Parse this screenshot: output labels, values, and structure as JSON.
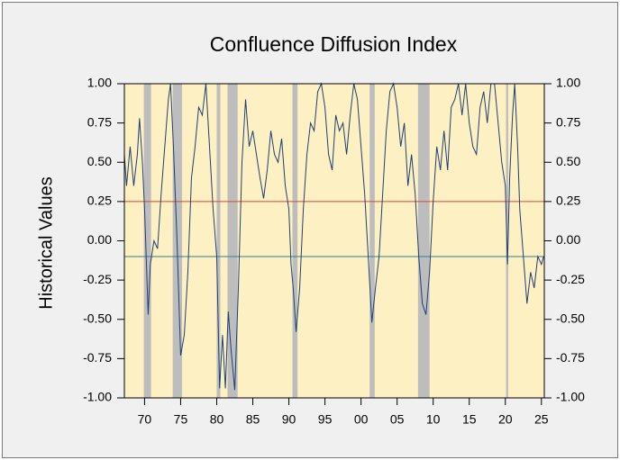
{
  "chart_data": {
    "type": "line",
    "title": "Confluence Diffusion Index",
    "y_label": "Historical Values",
    "xlim": [
      1967.2,
      2025.4
    ],
    "ylim": [
      -1,
      1
    ],
    "y2lim": [
      -1,
      1
    ],
    "xticks": [
      {
        "value": 1970,
        "label": "70"
      },
      {
        "value": 1975,
        "label": "75"
      },
      {
        "value": 1980,
        "label": "80"
      },
      {
        "value": 1985,
        "label": "85"
      },
      {
        "value": 1990,
        "label": "90"
      },
      {
        "value": 1995,
        "label": "95"
      },
      {
        "value": 2000,
        "label": "00"
      },
      {
        "value": 2005,
        "label": "05"
      },
      {
        "value": 2010,
        "label": "10"
      },
      {
        "value": 2015,
        "label": "15"
      },
      {
        "value": 2020,
        "label": "20"
      },
      {
        "value": 2025,
        "label": "25"
      }
    ],
    "yticks": [
      {
        "value": 1,
        "label": "1.00"
      },
      {
        "value": 0.75,
        "label": "0.75"
      },
      {
        "value": 0.5,
        "label": "0.50"
      },
      {
        "value": 0.25,
        "label": "0.25"
      },
      {
        "value": 0,
        "label": "0.00"
      },
      {
        "value": -0.25,
        "label": "-0.25"
      },
      {
        "value": -0.5,
        "label": "-0.50"
      },
      {
        "value": -0.75,
        "label": "-0.75"
      },
      {
        "value": -1,
        "label": "-1.00"
      }
    ],
    "y2ticks": [
      {
        "value": 1,
        "label": "1.00"
      },
      {
        "value": 0.75,
        "label": "0.75"
      },
      {
        "value": 0.5,
        "label": "0.50"
      },
      {
        "value": 0.25,
        "label": "0.25"
      },
      {
        "value": 0,
        "label": "0.00"
      },
      {
        "value": -0.25,
        "label": "-0.25"
      },
      {
        "value": -0.5,
        "label": "-0.50"
      },
      {
        "value": -0.75,
        "label": "-0.75"
      },
      {
        "value": -1,
        "label": "-1.00"
      }
    ],
    "plot_background": "#fdf1c3",
    "shade_color": "#bdbdbd",
    "shaded_periods": [
      [
        1969.9,
        1970.9
      ],
      [
        1973.9,
        1975.2
      ],
      [
        1980.0,
        1980.5
      ],
      [
        1981.5,
        1982.9
      ],
      [
        1990.5,
        1991.2
      ],
      [
        2001.2,
        2001.9
      ],
      [
        2007.9,
        2009.5
      ],
      [
        2020.1,
        2020.4
      ]
    ],
    "reference_lines": [
      {
        "value": 0.25,
        "color": "#d9463a"
      },
      {
        "value": -0.1,
        "color": "#2f7f8f"
      }
    ],
    "x": [
      1967.2,
      1967.5,
      1968,
      1968.5,
      1969,
      1969.3,
      1969.7,
      1970,
      1970.3,
      1970.5,
      1970.8,
      1971.3,
      1971.8,
      1972.3,
      1972.8,
      1973.3,
      1973.6,
      1974,
      1974.5,
      1975,
      1975.5,
      1976,
      1976.5,
      1977,
      1977.5,
      1978,
      1978.5,
      1979,
      1979.5,
      1980,
      1980.4,
      1980.8,
      1981.2,
      1981.6,
      1982,
      1982.5,
      1983,
      1983.5,
      1984,
      1984.5,
      1985,
      1985.5,
      1986,
      1986.5,
      1987,
      1987.5,
      1988,
      1988.5,
      1989,
      1989.5,
      1990,
      1990.3,
      1990.6,
      1991,
      1991.5,
      1992,
      1992.5,
      1993,
      1993.5,
      1994,
      1994.5,
      1995,
      1995.5,
      1996,
      1996.5,
      1997,
      1997.5,
      1998,
      1998.5,
      1999,
      1999.5,
      2000,
      2000.5,
      2001,
      2001.5,
      2002,
      2002.5,
      2003,
      2003.5,
      2004,
      2004.5,
      2005,
      2005.5,
      2006,
      2006.5,
      2007,
      2007.5,
      2008,
      2008.5,
      2009,
      2009.5,
      2010,
      2010.5,
      2011,
      2011.5,
      2012,
      2012.5,
      2013,
      2013.5,
      2014,
      2014.5,
      2015,
      2015.5,
      2016,
      2016.5,
      2017,
      2017.5,
      2018,
      2018.5,
      2019,
      2019.5,
      2020,
      2020.3,
      2020.6,
      2021,
      2021.3,
      2021.7,
      2022,
      2022.5,
      2023,
      2023.5,
      2024,
      2024.5,
      2025,
      2025.3
    ],
    "series": [
      {
        "color": "#1f3f73",
        "values": [
          0.55,
          0.35,
          0.6,
          0.35,
          0.55,
          0.78,
          0.5,
          0.2,
          -0.2,
          -0.47,
          -0.15,
          0.0,
          -0.05,
          0.3,
          0.6,
          0.9,
          1.0,
          0.6,
          0.0,
          -0.73,
          -0.6,
          -0.2,
          0.4,
          0.6,
          0.85,
          0.8,
          1.0,
          0.6,
          0.2,
          -0.1,
          -0.94,
          -0.6,
          -0.94,
          -0.45,
          -0.7,
          -0.95,
          -0.3,
          0.5,
          0.9,
          0.6,
          0.7,
          0.55,
          0.4,
          0.27,
          0.45,
          0.7,
          0.55,
          0.5,
          0.65,
          0.35,
          0.2,
          -0.15,
          -0.3,
          -0.58,
          -0.3,
          0.2,
          0.55,
          0.75,
          0.7,
          0.95,
          1.0,
          0.85,
          0.55,
          0.45,
          0.8,
          0.7,
          0.75,
          0.55,
          0.8,
          1.0,
          0.9,
          0.6,
          0.3,
          -0.1,
          -0.52,
          -0.3,
          -0.1,
          0.3,
          0.7,
          0.95,
          1.0,
          0.85,
          0.6,
          0.75,
          0.35,
          0.55,
          0.3,
          -0.1,
          -0.4,
          -0.47,
          -0.2,
          0.25,
          0.6,
          0.45,
          0.7,
          0.45,
          0.85,
          0.9,
          1.0,
          0.8,
          1.0,
          0.75,
          0.6,
          0.55,
          0.85,
          0.95,
          0.75,
          1.0,
          1.0,
          0.75,
          0.5,
          0.35,
          -0.15,
          0.4,
          0.8,
          1.0,
          0.6,
          0.2,
          -0.1,
          -0.4,
          -0.2,
          -0.3,
          -0.1,
          -0.15,
          -0.1
        ]
      }
    ]
  }
}
